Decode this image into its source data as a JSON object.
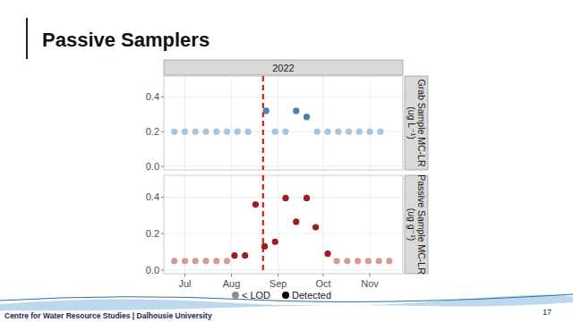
{
  "slide": {
    "title": "Passive Samplers",
    "footer": "Centre for Water Resource Studies | Dalhousie University",
    "page": "17"
  },
  "facet": "2022",
  "legend_items": [
    {
      "label": "< LOD",
      "color": "#8c8c8c"
    },
    {
      "label": "Detected",
      "color": "#000000"
    }
  ],
  "chart_data": [
    {
      "type": "scatter",
      "y_label": "Grab Sample MC-LR (ug L⁻¹)",
      "xlim": [
        168,
        327
      ],
      "xticks": [
        182,
        213,
        244,
        274,
        305
      ],
      "ylim": [
        -0.02,
        0.52
      ],
      "yticks": [
        {
          "value": 0,
          "label": "0.0"
        },
        {
          "value": 0.2,
          "label": "0.2"
        },
        {
          "value": 0.4,
          "label": "0.4"
        }
      ],
      "grid": true,
      "tick_labels": "y",
      "vline_x": 234,
      "series": [
        {
          "color": "#a9c5de",
          "marker": "circle",
          "x": [
            175,
            182,
            189,
            196,
            203,
            210,
            217,
            224,
            242,
            249,
            270,
            277,
            284,
            291,
            298,
            305,
            312
          ],
          "values": [
            0.2,
            0.2,
            0.2,
            0.2,
            0.2,
            0.2,
            0.2,
            0.2,
            0.2,
            0.2,
            0.2,
            0.2,
            0.2,
            0.2,
            0.2,
            0.2,
            0.2
          ]
        },
        {
          "color": "#4a7fb0",
          "marker": "circle",
          "x": [
            236,
            256,
            263
          ],
          "values": [
            0.32,
            0.32,
            0.285
          ]
        }
      ]
    },
    {
      "type": "scatter",
      "y_label": "Passive Sample MC-LR (ug g⁻¹)",
      "xlim": [
        168,
        327
      ],
      "xticks": [
        {
          "value": 182,
          "label": "Jul"
        },
        {
          "value": 213,
          "label": "Aug"
        },
        {
          "value": 244,
          "label": "Sep"
        },
        {
          "value": 274,
          "label": "Oct"
        },
        {
          "value": 305,
          "label": "Nov"
        }
      ],
      "ylim": [
        -0.02,
        0.52
      ],
      "yticks": [
        {
          "value": 0,
          "label": "0.0"
        },
        {
          "value": 0.2,
          "label": "0.2"
        },
        {
          "value": 0.4,
          "label": "0.4"
        }
      ],
      "grid": true,
      "tick_labels": true,
      "vline_x": 234,
      "series": [
        {
          "color": "#d49a9b",
          "marker": "circle",
          "x": [
            175,
            182,
            189,
            196,
            203,
            210,
            283,
            290,
            297,
            304,
            311,
            318
          ],
          "values": [
            0.05,
            0.05,
            0.05,
            0.05,
            0.05,
            0.05,
            0.05,
            0.05,
            0.05,
            0.05,
            0.05,
            0.05
          ]
        },
        {
          "color": "#9e1c20",
          "marker": "circle",
          "x": [
            215,
            222,
            229,
            235,
            242,
            249,
            256,
            263,
            269,
            277
          ],
          "values": [
            0.08,
            0.08,
            0.36,
            0.13,
            0.155,
            0.395,
            0.265,
            0.395,
            0.235,
            0.09
          ]
        }
      ]
    }
  ]
}
